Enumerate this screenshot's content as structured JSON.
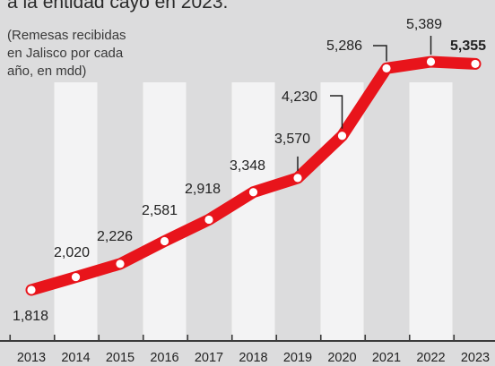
{
  "headline": "a la entidad cayó en 2023.",
  "subtitle_lines": [
    "(Remesas recibidas",
    "en Jalisco por cada",
    "año, en mdd)"
  ],
  "colors": {
    "line": "#e8141b",
    "band": "#f3f3f4",
    "background": "#dcdcdd",
    "text": "#222222"
  },
  "chart_data": {
    "type": "line",
    "categories": [
      "2013",
      "2014",
      "2015",
      "2016",
      "2017",
      "2018",
      "2019",
      "2020",
      "2021",
      "2022",
      "2023"
    ],
    "series": [
      {
        "values": [
          1818,
          2020,
          2226,
          2581,
          2918,
          3348,
          3570,
          4230,
          5286,
          5389,
          5355
        ]
      }
    ],
    "labels": [
      "1,818",
      "2,020",
      "2,226",
      "2,581",
      "2,918",
      "3,348",
      "3,570",
      "4,230",
      "5,286",
      "5,389",
      "5,355"
    ],
    "title": "",
    "xlabel": "",
    "ylabel": "",
    "grid": false,
    "legend": "none"
  }
}
